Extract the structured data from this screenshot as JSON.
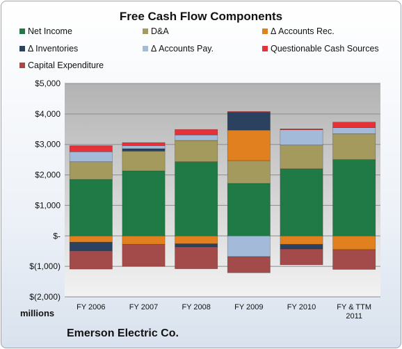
{
  "chart_data": {
    "type": "bar",
    "stacked": true,
    "title": "Free Cash Flow Components",
    "units": "millions",
    "company": "Emerson Electric Co.",
    "categories": [
      "FY 2006",
      "FY 2007",
      "FY 2008",
      "FY 2009",
      "FY 2010",
      "FY & TTM 2011"
    ],
    "ylim": [
      -2000,
      5000
    ],
    "yticks": [
      5000,
      4000,
      3000,
      2000,
      1000,
      0,
      -1000,
      -2000
    ],
    "ytick_labels": [
      "$5,000",
      "$4,000",
      "$3,000",
      "$2,000",
      "$1,000",
      "$-",
      "$(1,000)",
      "$(2,000)"
    ],
    "grid": true,
    "legend_position": "top",
    "series": [
      {
        "name": "Net Income",
        "color": "#1f7a45",
        "values": [
          1850,
          2130,
          2430,
          1720,
          2200,
          2500
        ]
      },
      {
        "name": "D&A",
        "color": "#a49a5e",
        "values": [
          580,
          650,
          700,
          750,
          780,
          850
        ]
      },
      {
        "name": "Δ Accounts Rec.",
        "color": "#e0801f",
        "values": [
          -210,
          -280,
          -260,
          1000,
          -280,
          -450
        ]
      },
      {
        "name": "Δ Inventories",
        "color": "#2b4160",
        "values": [
          -280,
          80,
          -100,
          580,
          -150,
          0
        ]
      },
      {
        "name": "Δ Accounts Pay.",
        "color": "#a3bbd9",
        "values": [
          330,
          100,
          180,
          -680,
          500,
          200
        ]
      },
      {
        "name": "Questionable Cash Sources",
        "color": "#e53238",
        "values": [
          200,
          100,
          180,
          30,
          30,
          180
        ]
      },
      {
        "name": "Capital Expenditure",
        "color": "#a34a4a",
        "values": [
          -600,
          -720,
          -720,
          -530,
          -520,
          -650
        ]
      }
    ]
  }
}
